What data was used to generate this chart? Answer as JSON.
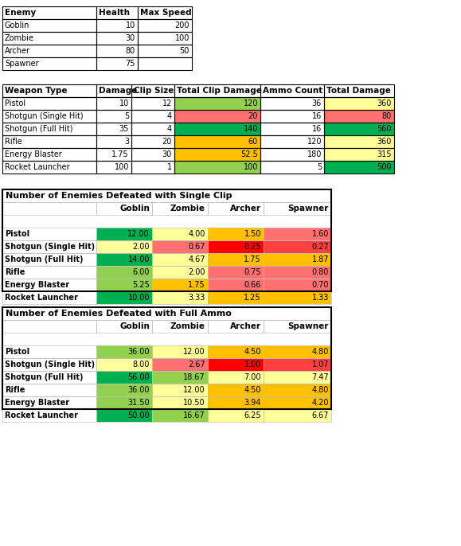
{
  "enemy_headers": [
    "Enemy",
    "Health",
    "Max Speed"
  ],
  "enemy_data": [
    [
      "Goblin",
      "10",
      "200"
    ],
    [
      "Zombie",
      "30",
      "100"
    ],
    [
      "Archer",
      "80",
      "50"
    ],
    [
      "Spawner",
      "75",
      ""
    ]
  ],
  "weapon_headers": [
    "Weapon Type",
    "Damage",
    "Clip Size",
    "Total Clip Damage",
    "Ammo Count",
    "Total Damage"
  ],
  "weapon_data": [
    [
      "Pistol",
      "10",
      "12",
      "120",
      "36",
      "360"
    ],
    [
      "Shotgun (Single Hit)",
      "5",
      "4",
      "20",
      "16",
      "80"
    ],
    [
      "Shotgun (Full Hit)",
      "35",
      "4",
      "140",
      "16",
      "560"
    ],
    [
      "Rifle",
      "3",
      "20",
      "60",
      "120",
      "360"
    ],
    [
      "Energy Blaster",
      "1.75",
      "30",
      "52.5",
      "180",
      "315"
    ],
    [
      "Rocket Launcher",
      "100",
      "1",
      "100",
      "5",
      "500"
    ]
  ],
  "weapon_clip_colors": [
    "#92D050",
    "#FF7070",
    "#00B050",
    "#FFC000",
    "#FFC000",
    "#92D050"
  ],
  "weapon_total_colors": [
    "#FFFF99",
    "#FF7070",
    "#00B050",
    "#FFFF99",
    "#FFFF99",
    "#00B050"
  ],
  "clip_title": "Number of Enemies Defeated with Single Clip",
  "clip_headers": [
    "",
    "Goblin",
    "Zombie",
    "Archer",
    "Spawner"
  ],
  "clip_data": [
    [
      "Pistol",
      "12.00",
      "4.00",
      "1.50",
      "1.60"
    ],
    [
      "Shotgun (Single Hit)",
      "2.00",
      "0.67",
      "0.25",
      "0.27"
    ],
    [
      "Shotgun (Full Hit)",
      "14.00",
      "4.67",
      "1.75",
      "1.87"
    ],
    [
      "Rifle",
      "6.00",
      "2.00",
      "0.75",
      "0.80"
    ],
    [
      "Energy Blaster",
      "5.25",
      "1.75",
      "0.66",
      "0.70"
    ],
    [
      "Rocket Launcher",
      "10.00",
      "3.33",
      "1.25",
      "1.33"
    ]
  ],
  "clip_colors": [
    [
      "#00B050",
      "#FFFF99",
      "#FFC000",
      "#FF7070"
    ],
    [
      "#FFFF99",
      "#FF7070",
      "#FF0000",
      "#FF4040"
    ],
    [
      "#00B050",
      "#FFFF99",
      "#FFC000",
      "#FFC000"
    ],
    [
      "#92D050",
      "#FFFF99",
      "#FF7070",
      "#FF7070"
    ],
    [
      "#92D050",
      "#FFC000",
      "#FF7070",
      "#FF7070"
    ],
    [
      "#00B050",
      "#FFFF99",
      "#FFC000",
      "#FFC000"
    ]
  ],
  "ammo_title": "Number of Enemies Defeated with Full Ammo",
  "ammo_headers": [
    "",
    "Goblin",
    "Zombie",
    "Archer",
    "Spawner"
  ],
  "ammo_data": [
    [
      "Pistol",
      "36.00",
      "12.00",
      "4.50",
      "4.80"
    ],
    [
      "Shotgun (Single Hit)",
      "8.00",
      "2.67",
      "1.00",
      "1.07"
    ],
    [
      "Shotgun (Full Hit)",
      "56.00",
      "18.67",
      "7.00",
      "7.47"
    ],
    [
      "Rifle",
      "36.00",
      "12.00",
      "4.50",
      "4.80"
    ],
    [
      "Energy Blaster",
      "31.50",
      "10.50",
      "3.94",
      "4.20"
    ],
    [
      "Rocket Launcher",
      "50.00",
      "16.67",
      "6.25",
      "6.67"
    ]
  ],
  "ammo_colors": [
    [
      "#92D050",
      "#FFFF99",
      "#FFC000",
      "#FFC000"
    ],
    [
      "#FFFF99",
      "#FF7070",
      "#FF0000",
      "#FF4040"
    ],
    [
      "#00B050",
      "#92D050",
      "#FFFF99",
      "#FFFF99"
    ],
    [
      "#92D050",
      "#FFFF99",
      "#FFC000",
      "#FFC000"
    ],
    [
      "#92D050",
      "#FFFF99",
      "#FFC000",
      "#FFC000"
    ],
    [
      "#00B050",
      "#92D050",
      "#FFFF99",
      "#FFFF99"
    ]
  ],
  "bg_color": "#FFFFFF",
  "font_size": 7.0,
  "bold_font_size": 7.5
}
